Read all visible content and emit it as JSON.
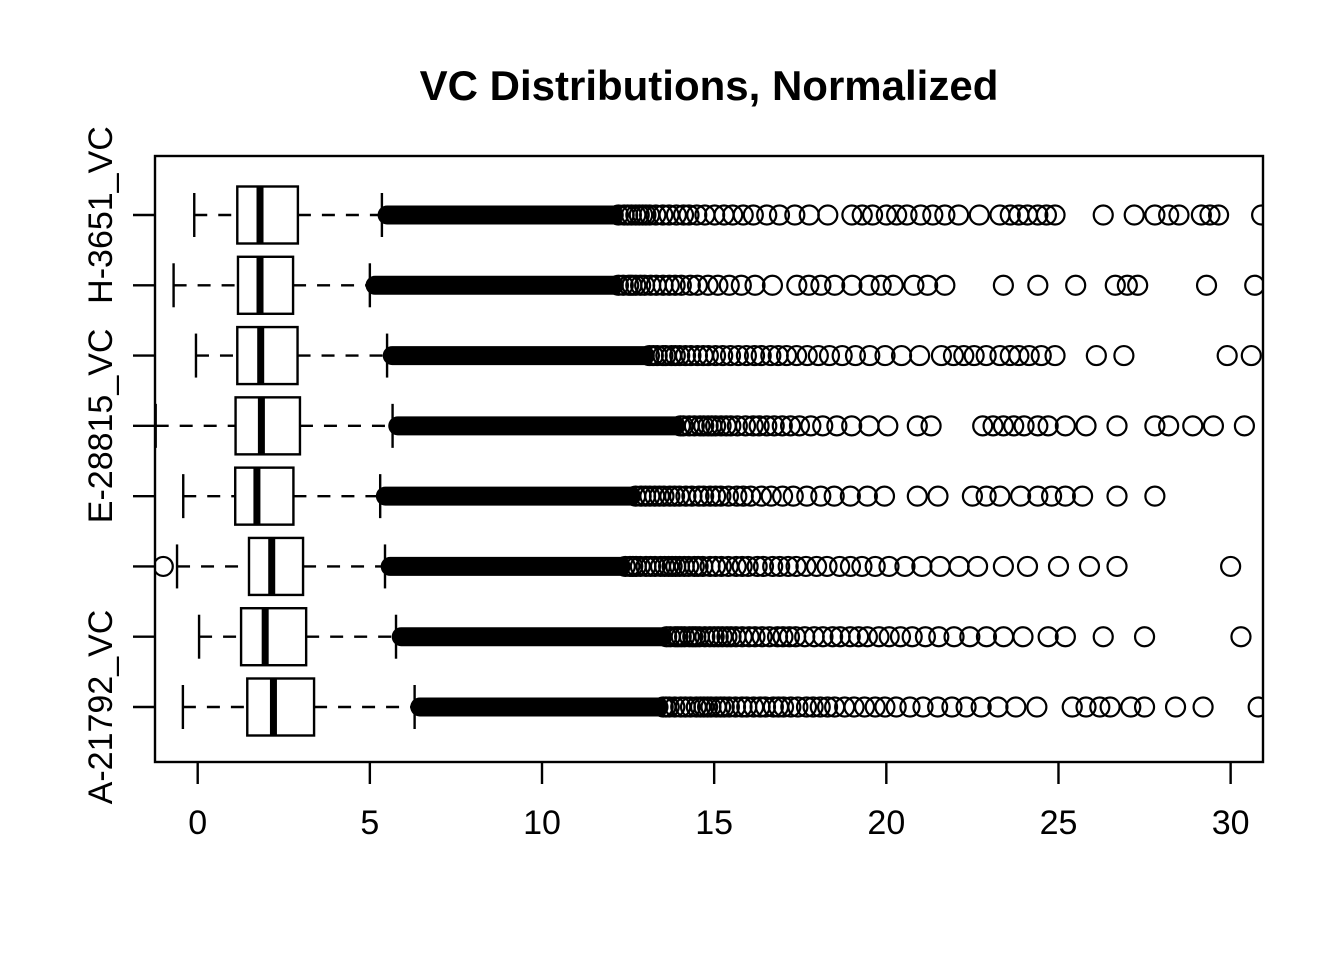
{
  "title": "VC Distributions, Normalized",
  "colors": {
    "foreground": "#000000",
    "background": "#ffffff"
  },
  "chart_data": {
    "type": "boxplot",
    "orientation": "horizontal",
    "title": "VC Distributions, Normalized",
    "x_axis": {
      "ticks": [
        0,
        5,
        10,
        15,
        20,
        25,
        30
      ],
      "range": [
        -1.24,
        30.94
      ],
      "grid": false
    },
    "y_axis": {
      "labeled_rows": [
        "H-3651_VC",
        "E-28815_VC",
        "A-21792_VC"
      ]
    },
    "rows": [
      {
        "label": "H-3651_VC",
        "stats": {
          "whisker_low": -0.1,
          "q1": 1.15,
          "median": 1.81,
          "q3": 2.91,
          "whisker_high": 5.35
        },
        "outlier_solid_to": 12.1,
        "outlier_packed_to": 18.7,
        "outliers": [
          19.0,
          19.3,
          19.6,
          20.0,
          20.3,
          20.6,
          21.0,
          21.35,
          21.7,
          22.1,
          22.7,
          23.3,
          23.6,
          23.85,
          24.1,
          24.4,
          24.65,
          24.9,
          26.3,
          27.2,
          27.8,
          28.2,
          28.5,
          29.15,
          29.4,
          29.65,
          30.9
        ]
      },
      {
        "label": "",
        "stats": {
          "whisker_low": -0.7,
          "q1": 1.17,
          "median": 1.81,
          "q3": 2.77,
          "whisker_high": 5.0
        },
        "outlier_solid_to": 12.1,
        "outlier_packed_to": 17.1,
        "outliers": [
          17.4,
          17.75,
          18.1,
          18.5,
          19.0,
          19.5,
          19.85,
          20.2,
          20.8,
          21.2,
          21.7,
          23.4,
          24.4,
          25.5,
          26.65,
          27.0,
          27.3,
          29.3,
          30.7
        ]
      },
      {
        "label": "",
        "stats": {
          "whisker_low": -0.05,
          "q1": 1.15,
          "median": 1.83,
          "q3": 2.9,
          "whisker_high": 5.5
        },
        "outlier_solid_to": 13.0,
        "outlier_packed_to": 21.2,
        "outliers": [
          21.6,
          21.95,
          22.25,
          22.55,
          22.9,
          23.3,
          23.6,
          23.85,
          24.15,
          24.5,
          24.9,
          26.1,
          26.9,
          29.9,
          30.6
        ]
      },
      {
        "label": "E-28815_VC",
        "stats": {
          "whisker_low": -1.22,
          "q1": 1.1,
          "median": 1.85,
          "q3": 2.97,
          "whisker_high": 5.66
        },
        "outlier_solid_to": 13.9,
        "outlier_packed_to": 20.1,
        "outliers": [
          20.9,
          21.3,
          22.8,
          23.1,
          23.4,
          23.7,
          24.0,
          24.4,
          24.7,
          25.2,
          25.8,
          26.7,
          27.8,
          28.2,
          28.9,
          29.5,
          30.4
        ]
      },
      {
        "label": "",
        "stats": {
          "whisker_low": -0.42,
          "q1": 1.09,
          "median": 1.72,
          "q3": 2.78,
          "whisker_high": 5.3
        },
        "outlier_solid_to": 12.6,
        "outlier_packed_to": 20.2,
        "outliers": [
          20.9,
          21.5,
          22.5,
          22.9,
          23.3,
          23.9,
          24.4,
          24.8,
          25.2,
          25.7,
          26.7,
          27.8
        ]
      },
      {
        "label": "",
        "stats": {
          "whisker_low": -0.6,
          "q1": 1.49,
          "median": 2.15,
          "q3": 3.06,
          "whisker_high": 5.44
        },
        "outlier_solid_to": 12.3,
        "outlier_packed_to": 22.7,
        "outliers": [
          -1.0,
          23.4,
          24.1,
          25.0,
          25.9,
          26.7,
          30.0
        ]
      },
      {
        "label": "",
        "stats": {
          "whisker_low": 0.04,
          "q1": 1.26,
          "median": 1.96,
          "q3": 3.15,
          "whisker_high": 5.76
        },
        "outlier_solid_to": 13.5,
        "outlier_packed_to": 24.3,
        "outliers": [
          24.7,
          25.2,
          26.3,
          27.5,
          30.3
        ]
      },
      {
        "label": "A-21792_VC",
        "stats": {
          "whisker_low": -0.43,
          "q1": 1.44,
          "median": 2.2,
          "q3": 3.38,
          "whisker_high": 6.3
        },
        "outlier_solid_to": 13.4,
        "outlier_packed_to": 24.6,
        "outliers": [
          25.4,
          25.8,
          26.2,
          26.5,
          27.1,
          27.5,
          28.4,
          29.2,
          30.8
        ]
      }
    ]
  }
}
